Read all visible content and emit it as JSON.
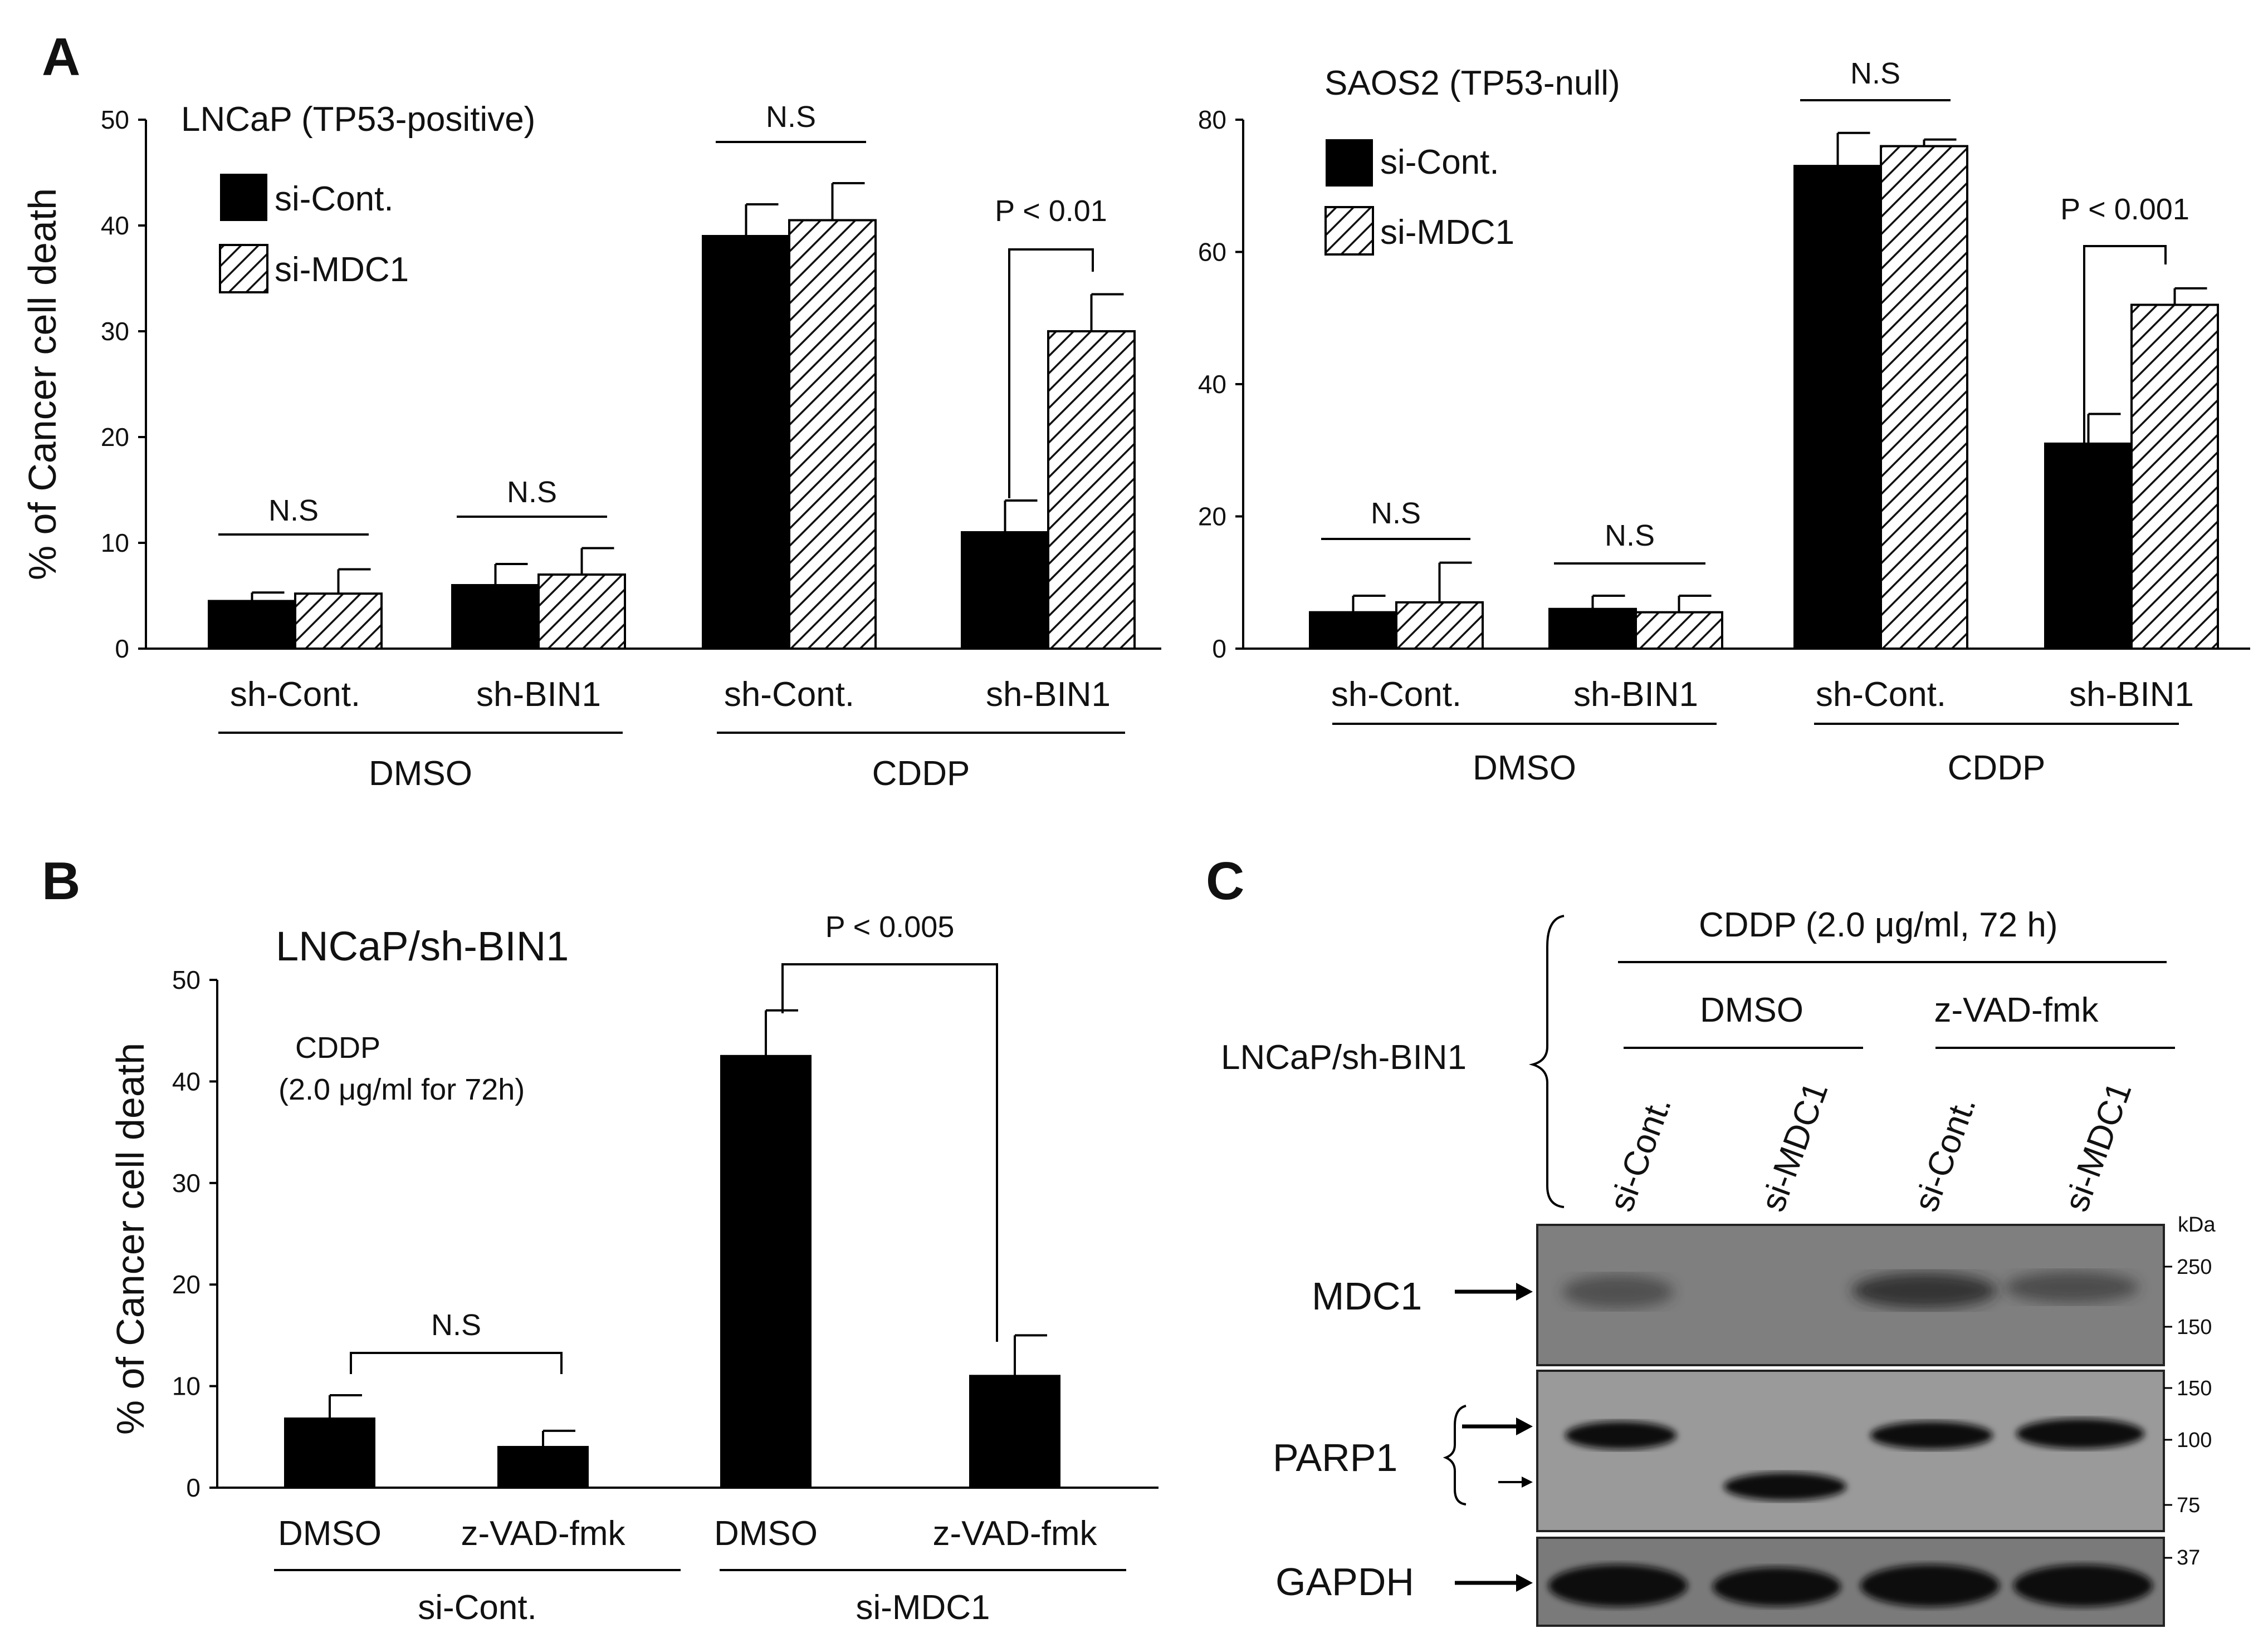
{
  "panels": {
    "A": "A",
    "B": "B",
    "C": "C"
  },
  "chart_data": [
    {
      "id": "A-left",
      "type": "bar",
      "title": "LNCaP (TP53-positive)",
      "ylabel": "% of Cancer cell death",
      "ylim": [
        0,
        50
      ],
      "yticks": [
        "0",
        "10",
        "20",
        "30",
        "40",
        "50"
      ],
      "categories": [
        "sh-Cont.",
        "sh-BIN1",
        "sh-Cont.",
        "sh-BIN1"
      ],
      "groups": [
        {
          "label": "DMSO",
          "categories": [
            0,
            1
          ]
        },
        {
          "label": "CDDP",
          "categories": [
            2,
            3
          ]
        }
      ],
      "series": [
        {
          "name": "si-Cont.",
          "fill": "solid",
          "values": [
            4.5,
            6,
            39,
            11
          ],
          "errors": [
            0.8,
            2,
            3,
            3
          ]
        },
        {
          "name": "si-MDC1",
          "fill": "hatched",
          "values": [
            5.2,
            7,
            40.5,
            30
          ],
          "errors": [
            2.3,
            2.5,
            3.5,
            3.5
          ]
        }
      ],
      "annotations": [
        {
          "category": 0,
          "type": "line",
          "text": "N.S"
        },
        {
          "category": 1,
          "type": "line",
          "text": "N.S"
        },
        {
          "category": 2,
          "type": "line",
          "text": "N.S"
        },
        {
          "category": 3,
          "type": "bracket",
          "text": "P < 0.01"
        }
      ],
      "legend": "top-left"
    },
    {
      "id": "A-right",
      "type": "bar",
      "title": "SAOS2 (TP53-null)",
      "ylabel": "",
      "ylim": [
        0,
        80
      ],
      "yticks": [
        "0",
        "20",
        "40",
        "60",
        "80"
      ],
      "categories": [
        "sh-Cont.",
        "sh-BIN1",
        "sh-Cont.",
        "sh-BIN1"
      ],
      "groups": [
        {
          "label": "DMSO",
          "categories": [
            0,
            1
          ]
        },
        {
          "label": "CDDP",
          "categories": [
            2,
            3
          ]
        }
      ],
      "series": [
        {
          "name": "si-Cont.",
          "fill": "solid",
          "values": [
            5.5,
            6,
            73,
            31
          ],
          "errors": [
            2.5,
            2,
            5,
            4.5
          ]
        },
        {
          "name": "si-MDC1",
          "fill": "hatched",
          "values": [
            7,
            5.5,
            76,
            52
          ],
          "errors": [
            6,
            2.5,
            1,
            2.5
          ]
        }
      ],
      "annotations": [
        {
          "category": 0,
          "type": "line",
          "text": "N.S"
        },
        {
          "category": 1,
          "type": "line",
          "text": "N.S"
        },
        {
          "category": 2,
          "type": "line",
          "text": "N.S"
        },
        {
          "category": 3,
          "type": "bracket",
          "text": "P < 0.001"
        }
      ],
      "legend": "top-left"
    },
    {
      "id": "B",
      "type": "bar",
      "title": "LNCaP/sh-BIN1",
      "note": [
        "CDDP",
        "(2.0 μg/ml for 72h)"
      ],
      "ylabel": "% of Cancer cell death",
      "ylim": [
        0,
        50
      ],
      "yticks": [
        "0",
        "10",
        "20",
        "30",
        "40",
        "50"
      ],
      "categories": [
        "DMSO",
        "z-VAD-fmk",
        "DMSO",
        "z-VAD-fmk"
      ],
      "groups": [
        {
          "label": "si-Cont.",
          "categories": [
            0,
            1
          ]
        },
        {
          "label": "si-MDC1",
          "categories": [
            2,
            3
          ]
        }
      ],
      "series": [
        {
          "name": "cell death",
          "fill": "solid",
          "values": [
            6.8,
            4,
            42.5,
            11
          ],
          "errors": [
            2.3,
            1.6,
            4.5,
            4
          ]
        }
      ],
      "annotations": [
        {
          "from": 0,
          "to": 1,
          "type": "bracket",
          "text": "N.S"
        },
        {
          "from": 2,
          "to": 3,
          "type": "bracket",
          "text": "P < 0.005"
        }
      ]
    }
  ],
  "blot": {
    "treatment": "CDDP (2.0 μg/ml, 72 h)",
    "cell_line": "LNCaP/sh-BIN1",
    "conditions": [
      "DMSO",
      "z-VAD-fmk"
    ],
    "lanes": [
      "si-Cont.",
      "si-MDC1",
      "si-Cont.",
      "si-MDC1"
    ],
    "kda_unit": "kDa",
    "rows": [
      {
        "label": "MDC1",
        "markers": [
          "250",
          "150"
        ],
        "bands": [
          [
            0.45
          ],
          [
            0
          ],
          [
            0.8
          ],
          [
            0.55
          ]
        ]
      },
      {
        "label": "PARP1",
        "markers": [
          "150",
          "100",
          "75"
        ],
        "bands_full": [
          0.9,
          0,
          0.92,
          0.92
        ],
        "bands_cleaved": [
          0,
          0.9,
          0,
          0
        ]
      },
      {
        "label": "GAPDH",
        "markers": [
          "37"
        ],
        "bands": [
          [
            0.95
          ],
          [
            0.9
          ],
          [
            0.95
          ],
          [
            0.95
          ]
        ]
      }
    ]
  }
}
